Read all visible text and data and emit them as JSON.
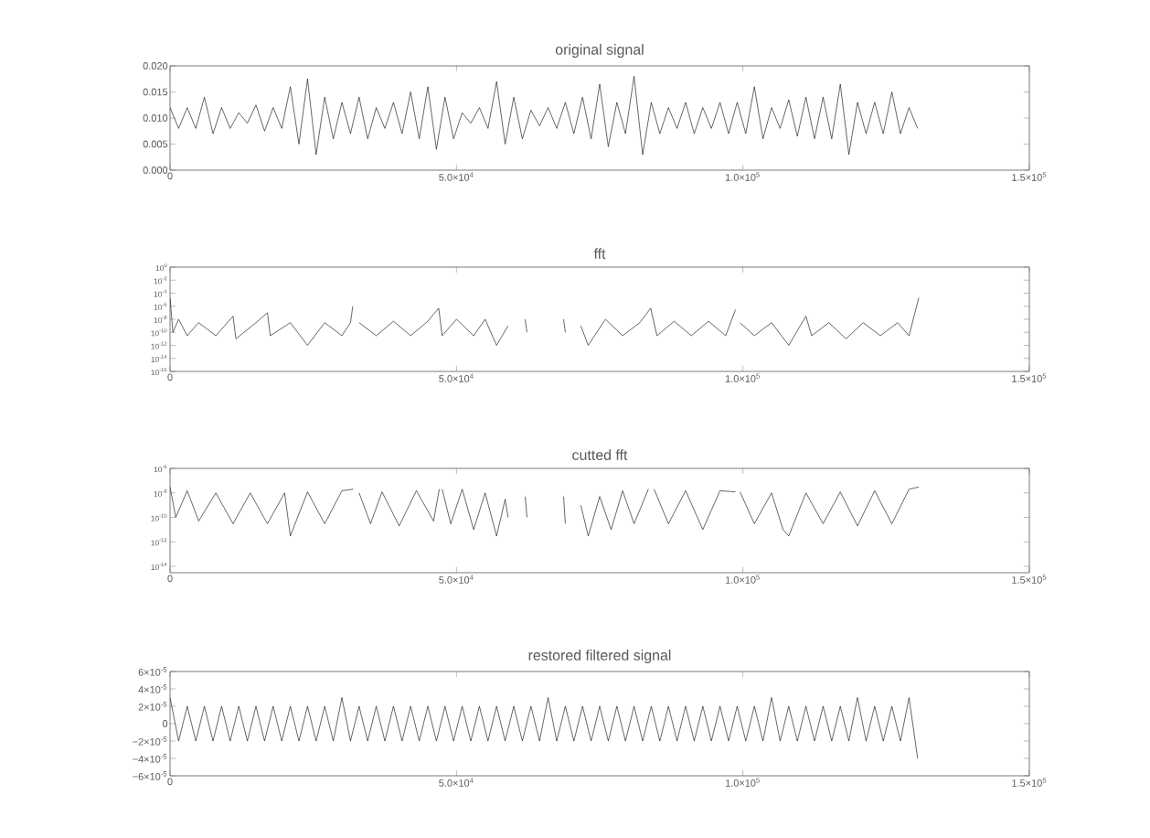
{
  "chart_data": [
    {
      "type": "line",
      "title": "original signal",
      "xlim": [
        0,
        150000
      ],
      "ylim": [
        0,
        0.02
      ],
      "xticks": [
        0,
        {
          "value": 50000,
          "label": "5.0×10$^{4}$"
        },
        {
          "value": 100000,
          "label": "1.0×10$^{5}$"
        },
        {
          "value": 150000,
          "label": "1.5×10$^{5}$"
        }
      ],
      "yticks": [
        {
          "value": 0,
          "label": "0.000"
        },
        {
          "value": 0.005,
          "label": "0.005"
        },
        {
          "value": 0.01,
          "label": "0.010"
        },
        {
          "value": 0.015,
          "label": "0.015"
        },
        {
          "value": 0.02,
          "label": "0.020"
        }
      ],
      "series": [
        {
          "color": "#000000",
          "x": [
            0,
            1500,
            3000,
            4500,
            6000,
            7500,
            9000,
            10500,
            12000,
            13500,
            15000,
            16500,
            18000,
            19500,
            21000,
            22500,
            24000,
            25500,
            27000,
            28500,
            30000,
            31500,
            33000,
            34500,
            36000,
            37500,
            39000,
            40500,
            42000,
            43500,
            45000,
            46500,
            48000,
            49500,
            51000,
            52500,
            54000,
            55500,
            57000,
            58500,
            60000,
            61500,
            63000,
            64500,
            66000,
            67500,
            69000,
            70500,
            72000,
            73500,
            75000,
            76500,
            78000,
            79500,
            81000,
            82500,
            84000,
            85500,
            87000,
            88500,
            90000,
            91500,
            93000,
            94500,
            96000,
            97500,
            99000,
            100500,
            102000,
            103500,
            105000,
            106500,
            108000,
            109500,
            111000,
            112500,
            114000,
            115500,
            117000,
            118500,
            120000,
            121500,
            123000,
            124500,
            126000,
            127500,
            129000,
            130500
          ],
          "values": [
            0.012,
            0.008,
            0.012,
            0.008,
            0.014,
            0.007,
            0.012,
            0.008,
            0.011,
            0.009,
            0.0125,
            0.0075,
            0.012,
            0.008,
            0.016,
            0.005,
            0.0175,
            0.003,
            0.014,
            0.006,
            0.013,
            0.007,
            0.014,
            0.006,
            0.012,
            0.008,
            0.013,
            0.007,
            0.015,
            0.006,
            0.016,
            0.004,
            0.014,
            0.006,
            0.011,
            0.009,
            0.012,
            0.008,
            0.017,
            0.005,
            0.014,
            0.006,
            0.0115,
            0.0085,
            0.012,
            0.008,
            0.013,
            0.007,
            0.014,
            0.006,
            0.0165,
            0.0045,
            0.013,
            0.007,
            0.018,
            0.003,
            0.013,
            0.007,
            0.012,
            0.008,
            0.013,
            0.007,
            0.012,
            0.008,
            0.013,
            0.007,
            0.013,
            0.007,
            0.016,
            0.006,
            0.012,
            0.008,
            0.0135,
            0.0065,
            0.014,
            0.006,
            0.014,
            0.006,
            0.0165,
            0.003,
            0.013,
            0.007,
            0.013,
            0.007,
            0.015,
            0.007,
            0.012,
            0.008
          ]
        }
      ]
    },
    {
      "type": "line",
      "title": "fft",
      "log": "y",
      "xlim": [
        0,
        150000
      ],
      "ylim": [
        1e-16,
        1
      ],
      "xticks": [
        0,
        {
          "value": 50000,
          "label": "5.0×10$^{4}$"
        },
        {
          "value": 100000,
          "label": "1.0×10$^{5}$"
        },
        {
          "value": 150000,
          "label": "1.5×10$^{5}$"
        }
      ],
      "yticks": [
        {
          "value": 1e-16,
          "label": "10$^{-16}$"
        },
        {
          "value": 1e-14,
          "label": "10$^{-14}$"
        },
        {
          "value": 1e-12,
          "label": "10$^{-12}$"
        },
        {
          "value": 1e-10,
          "label": "10$^{-10}$"
        },
        {
          "value": 1e-08,
          "label": "10$^{-8}$"
        },
        {
          "value": 1e-06,
          "label": "10$^{-6}$"
        },
        {
          "value": 0.0001,
          "label": "10$^{-4}$"
        },
        {
          "value": 0.01,
          "label": "10$^{-2}$"
        },
        {
          "value": 1,
          "label": "10$^{0}$"
        }
      ],
      "series": [
        {
          "color": "#000000",
          "x": [
            0,
            500,
            1500,
            3000,
            5000,
            8000,
            11000,
            11500,
            15000,
            17000,
            17500,
            21000,
            24000,
            27000,
            30000,
            31500,
            31900,
            32400,
            33000,
            36000,
            39000,
            42000,
            45000,
            46900,
            47500,
            50000,
            53000,
            55000,
            57000,
            59000,
            60000,
            62000,
            62300,
            62600,
            68700,
            69000,
            69300,
            71700,
            73000,
            76000,
            79000,
            82000,
            83900,
            85000,
            88000,
            91000,
            94000,
            97000,
            98700,
            99100,
            99500,
            102000,
            105000,
            108000,
            111000,
            112000,
            115000,
            118000,
            121000,
            124000,
            127000,
            129000,
            130700
          ],
          "values": [
            2e-05,
            1e-10,
            1e-08,
            3e-11,
            3e-09,
            3e-11,
            3e-08,
            1e-11,
            3e-09,
            1e-07,
            3e-11,
            3e-09,
            1e-12,
            3e-09,
            3e-11,
            3e-09,
            1e-06,
            null,
            3e-09,
            3e-11,
            5e-09,
            3e-11,
            5e-09,
            5e-07,
            3e-11,
            1e-08,
            3e-11,
            1e-08,
            1e-12,
            1e-09,
            null,
            1e-08,
            1e-10,
            null,
            1e-08,
            1e-10,
            null,
            1e-09,
            1e-12,
            1e-08,
            3e-11,
            3e-09,
            5e-07,
            3e-11,
            5e-09,
            3e-11,
            5e-09,
            3e-11,
            3e-07,
            null,
            3e-09,
            3e-11,
            3e-09,
            1e-12,
            3e-08,
            3e-11,
            3e-09,
            1e-11,
            3e-09,
            3e-11,
            3e-09,
            3e-11,
            2e-05
          ]
        }
      ]
    },
    {
      "type": "line",
      "title": "cutted fft",
      "log": "y",
      "xlim": [
        0,
        150000
      ],
      "ylim": [
        3e-15,
        1e-06
      ],
      "xticks": [
        0,
        {
          "value": 50000,
          "label": "5.0×10$^{4}$"
        },
        {
          "value": 100000,
          "label": "1.0×10$^{5}$"
        },
        {
          "value": 150000,
          "label": "1.5×10$^{5}$"
        }
      ],
      "yticks": [
        {
          "value": 1e-14,
          "label": "10$^{-14}$"
        },
        {
          "value": 1e-12,
          "label": "10$^{-12}$"
        },
        {
          "value": 1e-10,
          "label": "10$^{-10}$"
        },
        {
          "value": 1e-08,
          "label": "10$^{-8}$"
        },
        {
          "value": 1e-06,
          "label": "10$^{-6}$"
        }
      ],
      "series": [
        {
          "color": "#000000",
          "x": [
            0,
            1000,
            3000,
            5000,
            8000,
            11000,
            14000,
            17000,
            20000,
            21000,
            24000,
            27000,
            30000,
            32000,
            32500,
            33000,
            35000,
            37000,
            40000,
            43000,
            46000,
            47000,
            47200,
            47500,
            49000,
            51000,
            53000,
            55000,
            57000,
            58500,
            59000,
            60000,
            62000,
            62300,
            62600,
            68700,
            69000,
            69300,
            71700,
            73000,
            75000,
            77000,
            79000,
            81000,
            83500,
            84000,
            84500,
            87000,
            90000,
            93000,
            96000,
            98700,
            99000,
            99500,
            102000,
            105000,
            107000,
            108000,
            111000,
            114000,
            117000,
            120000,
            123000,
            126000,
            129000,
            130700
          ],
          "values": [
            3e-08,
            1e-10,
            1.5e-08,
            5e-11,
            1e-08,
            3e-11,
            1e-08,
            3e-11,
            1e-08,
            3e-12,
            1.2e-08,
            3e-11,
            1.5e-08,
            2e-08,
            null,
            1e-08,
            3e-11,
            1.2e-08,
            2e-11,
            1.5e-08,
            5e-11,
            2e-08,
            null,
            2e-08,
            3e-11,
            2e-08,
            1e-11,
            1e-08,
            3e-12,
            3e-09,
            1e-10,
            null,
            5e-09,
            1e-10,
            null,
            5e-09,
            3e-11,
            null,
            1e-09,
            3e-12,
            5e-09,
            1e-11,
            1.5e-08,
            3e-11,
            2e-08,
            null,
            2e-08,
            3e-11,
            1.5e-08,
            1e-11,
            1.5e-08,
            1.2e-08,
            null,
            1.2e-08,
            3e-11,
            1e-08,
            1e-11,
            3e-12,
            1e-08,
            3e-11,
            1.2e-08,
            2e-11,
            1.5e-08,
            3e-11,
            2e-08,
            3e-08
          ]
        }
      ]
    },
    {
      "type": "line",
      "title": "restored filtered signal",
      "xlim": [
        0,
        150000
      ],
      "ylim": [
        -6e-05,
        6e-05
      ],
      "xticks": [
        0,
        {
          "value": 50000,
          "label": "5.0×10$^{4}$"
        },
        {
          "value": 100000,
          "label": "1.0×10$^{5}$"
        },
        {
          "value": 150000,
          "label": "1.5×10$^{5}$"
        }
      ],
      "yticks": [
        {
          "value": -6e-05,
          "label": "−6×10$^{-5}$"
        },
        {
          "value": -4e-05,
          "label": "−4×10$^{-5}$"
        },
        {
          "value": -2e-05,
          "label": "−2×10$^{-5}$"
        },
        0,
        {
          "value": 2e-05,
          "label": "2×10$^{-5}$"
        },
        {
          "value": 4e-05,
          "label": "4×10$^{-5}$"
        },
        {
          "value": 6e-05,
          "label": "6×10$^{-5}$"
        }
      ],
      "series": [
        {
          "color": "#000000",
          "x": [
            0,
            1500,
            3000,
            4500,
            6000,
            7500,
            9000,
            10500,
            12000,
            13500,
            15000,
            16500,
            18000,
            19500,
            21000,
            22500,
            24000,
            25500,
            27000,
            28500,
            30000,
            31500,
            33000,
            34500,
            36000,
            37500,
            39000,
            40500,
            42000,
            43500,
            45000,
            46500,
            48000,
            49500,
            51000,
            52500,
            54000,
            55500,
            57000,
            58500,
            60000,
            61500,
            63000,
            64500,
            66000,
            67500,
            69000,
            70500,
            72000,
            73500,
            75000,
            76500,
            78000,
            79500,
            81000,
            82500,
            84000,
            85500,
            87000,
            88500,
            90000,
            91500,
            93000,
            94500,
            96000,
            97500,
            99000,
            100500,
            102000,
            103500,
            105000,
            106500,
            108000,
            109500,
            111000,
            112500,
            114000,
            115500,
            117000,
            118500,
            120000,
            121500,
            123000,
            124500,
            126000,
            127500,
            129000,
            130500
          ],
          "values": [
            3e-05,
            -2e-05,
            2e-05,
            -2e-05,
            2e-05,
            -2e-05,
            2e-05,
            -2e-05,
            2e-05,
            -2e-05,
            2e-05,
            -2e-05,
            2e-05,
            -2e-05,
            2e-05,
            -2e-05,
            2e-05,
            -2e-05,
            2e-05,
            -2e-05,
            3e-05,
            -2e-05,
            2e-05,
            -2e-05,
            2e-05,
            -2e-05,
            2e-05,
            -2e-05,
            2e-05,
            -2e-05,
            2e-05,
            -2e-05,
            2e-05,
            -2e-05,
            2e-05,
            -2e-05,
            2e-05,
            -2e-05,
            2e-05,
            -2e-05,
            2e-05,
            -2e-05,
            2e-05,
            -2e-05,
            3e-05,
            -2e-05,
            2e-05,
            -2e-05,
            2e-05,
            -2e-05,
            2e-05,
            -2e-05,
            2e-05,
            -2e-05,
            2e-05,
            -2e-05,
            2e-05,
            -2e-05,
            2e-05,
            -2e-05,
            2e-05,
            -2e-05,
            2e-05,
            -2e-05,
            2e-05,
            -2e-05,
            2e-05,
            -2e-05,
            2e-05,
            -2e-05,
            3e-05,
            -2e-05,
            2e-05,
            -2e-05,
            2e-05,
            -2e-05,
            2e-05,
            -2e-05,
            2e-05,
            -2e-05,
            3e-05,
            -2e-05,
            2e-05,
            -2e-05,
            2e-05,
            -2e-05,
            3e-05,
            -4e-05
          ]
        }
      ]
    }
  ]
}
